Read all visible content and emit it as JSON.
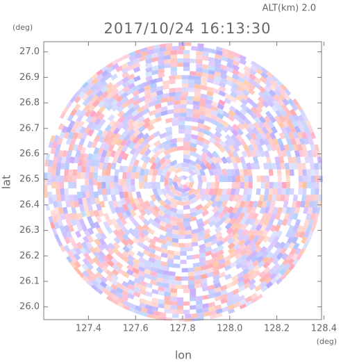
{
  "chart_data": {
    "type": "radar-field",
    "title": "2017/10/24 16:13:30",
    "subtitle": "ALT(km)  2.0",
    "x_label": "lon",
    "x_unit": "(deg)",
    "y_label": "lat",
    "y_unit": "(deg)",
    "xlim": [
      127.21,
      128.39
    ],
    "xticks": [
      127.4,
      127.6,
      127.8,
      {
        "value": 128.0,
        "label": "128.0"
      },
      128.2,
      128.4
    ],
    "ylim": [
      25.95,
      27.04
    ],
    "yticks": [
      {
        "value": 26.0,
        "label": "26.0"
      },
      26.1,
      26.2,
      26.3,
      26.4,
      26.5,
      26.6,
      26.7,
      26.8,
      26.9,
      {
        "value": 27.0,
        "label": "27.0"
      }
    ]
  }
}
